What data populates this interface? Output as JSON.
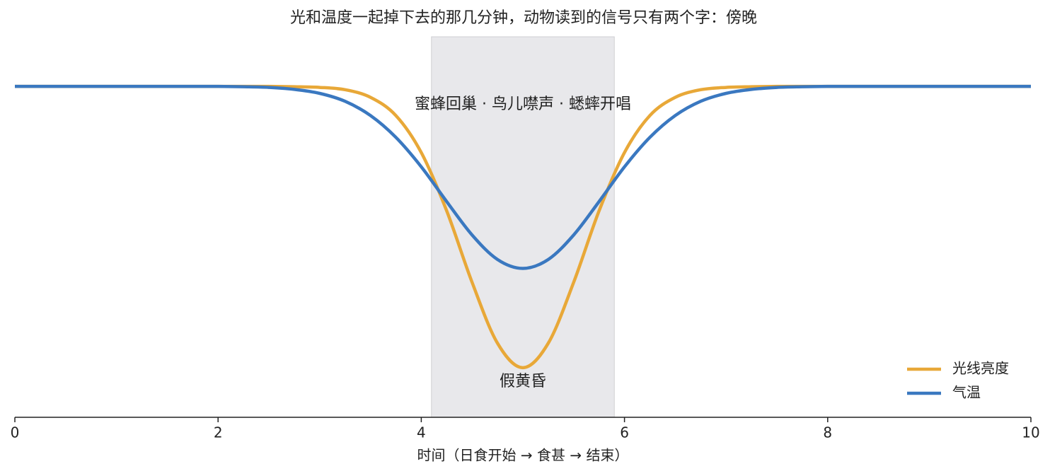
{
  "chart_data": {
    "type": "line",
    "title": "光和温度一起掉下去的那几分钟，动物读到的信号只有两个字：傍晚",
    "x_label": "时间（日食开始 → 食甚 → 结束）",
    "x": [
      0,
      0.25,
      0.5,
      0.75,
      1,
      1.25,
      1.5,
      1.75,
      2,
      2.25,
      2.5,
      2.75,
      3,
      3.25,
      3.5,
      3.75,
      4,
      4.25,
      4.5,
      4.75,
      5,
      5.25,
      5.5,
      5.75,
      6,
      6.25,
      6.5,
      6.75,
      7,
      7.25,
      7.5,
      7.75,
      8,
      8.25,
      8.5,
      8.75,
      9,
      9.25,
      9.5,
      9.75,
      10
    ],
    "series": [
      {
        "name": "光线亮度",
        "color": "#e8a838",
        "values": [
          1,
          1,
          1,
          1,
          1,
          1,
          1,
          1,
          1,
          1,
          1,
          0.999,
          0.997,
          0.99,
          0.967,
          0.912,
          0.8,
          0.624,
          0.408,
          0.224,
          0.15,
          0.224,
          0.408,
          0.624,
          0.8,
          0.912,
          0.967,
          0.99,
          0.997,
          0.999,
          1,
          1,
          1,
          1,
          1,
          1,
          1,
          1,
          1,
          1,
          1
        ]
      },
      {
        "name": "气温",
        "color": "#3a78c0",
        "values": [
          1,
          1,
          1,
          1,
          1,
          1,
          1,
          1,
          1,
          0.999,
          0.997,
          0.991,
          0.979,
          0.955,
          0.912,
          0.846,
          0.757,
          0.652,
          0.551,
          0.477,
          0.45,
          0.477,
          0.551,
          0.652,
          0.757,
          0.846,
          0.912,
          0.955,
          0.979,
          0.991,
          0.997,
          0.999,
          1,
          1,
          1,
          1,
          1,
          1,
          1,
          1,
          1
        ]
      }
    ],
    "shade": [
      4.1,
      5.9
    ],
    "annotations": [
      "蜜蜂回巢 · 鸟儿噤声 · 蟋蟀开唱",
      "假黄昏"
    ],
    "xlim": [
      0,
      10
    ],
    "xticks": [
      0,
      2,
      4,
      6,
      8,
      10
    ],
    "ylim": [
      0,
      1.15
    ],
    "legend": "lower right"
  }
}
